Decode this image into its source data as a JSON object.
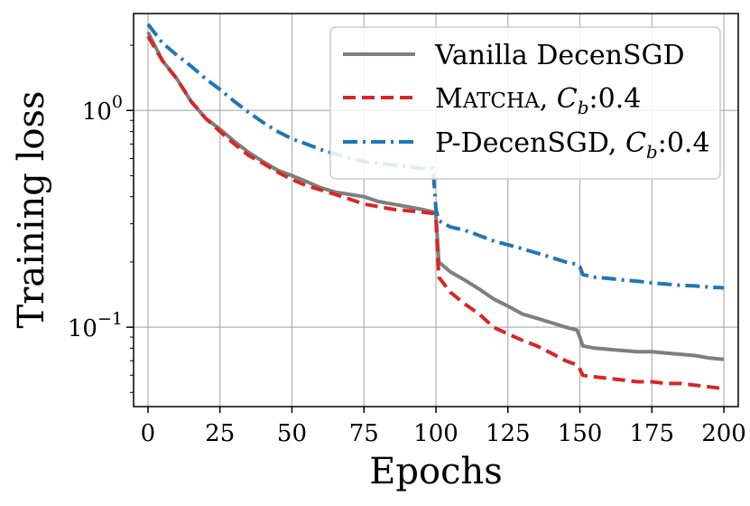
{
  "chart_data": {
    "type": "line",
    "title": "",
    "xlabel": "Epochs",
    "ylabel": "Training loss",
    "xlim": [
      -5,
      205
    ],
    "ylim": [
      0.043,
      2.8
    ],
    "yscale": "log",
    "grid": true,
    "legend_position": "top-right",
    "x_ticks": [
      0,
      25,
      50,
      75,
      100,
      125,
      150,
      175,
      200
    ],
    "x_tick_labels": [
      "0",
      "25",
      "50",
      "75",
      "100",
      "125",
      "150",
      "175",
      "200"
    ],
    "y_ticks": [
      0.1,
      1
    ],
    "y_tick_labels": [
      {
        "base": "10",
        "exp": "−1"
      },
      {
        "base": "10",
        "exp": "0"
      }
    ],
    "series": [
      {
        "name": "Vanilla DecenSGD",
        "color": "#7f7f7f",
        "dash": "solid",
        "x": [
          0,
          5,
          10,
          15,
          20,
          25,
          30,
          35,
          40,
          45,
          50,
          55,
          60,
          65,
          70,
          75,
          80,
          85,
          90,
          95,
          99,
          100,
          101,
          105,
          110,
          115,
          120,
          125,
          130,
          135,
          140,
          145,
          149,
          150,
          151,
          155,
          160,
          165,
          170,
          175,
          180,
          185,
          190,
          195,
          200
        ],
        "values": [
          2.3,
          1.7,
          1.4,
          1.1,
          0.92,
          0.82,
          0.72,
          0.64,
          0.58,
          0.53,
          0.5,
          0.47,
          0.44,
          0.42,
          0.41,
          0.4,
          0.38,
          0.37,
          0.36,
          0.35,
          0.34,
          0.33,
          0.2,
          0.18,
          0.165,
          0.15,
          0.135,
          0.125,
          0.115,
          0.11,
          0.105,
          0.1,
          0.097,
          0.09,
          0.082,
          0.08,
          0.079,
          0.078,
          0.077,
          0.077,
          0.076,
          0.075,
          0.074,
          0.072,
          0.071
        ]
      },
      {
        "name": "MATCHA, Cb:0.4",
        "color": "#d62728",
        "dash": "dashed",
        "x": [
          0,
          5,
          10,
          15,
          20,
          25,
          30,
          35,
          40,
          45,
          50,
          55,
          60,
          65,
          70,
          75,
          80,
          85,
          90,
          95,
          99,
          100,
          101,
          105,
          110,
          115,
          120,
          125,
          130,
          135,
          140,
          145,
          149,
          150,
          151,
          155,
          160,
          165,
          170,
          175,
          180,
          185,
          190,
          195,
          200
        ],
        "values": [
          2.2,
          1.7,
          1.4,
          1.1,
          0.92,
          0.8,
          0.7,
          0.62,
          0.57,
          0.52,
          0.48,
          0.45,
          0.43,
          0.41,
          0.39,
          0.37,
          0.36,
          0.35,
          0.345,
          0.34,
          0.335,
          0.32,
          0.17,
          0.145,
          0.128,
          0.115,
          0.1,
          0.093,
          0.087,
          0.082,
          0.076,
          0.07,
          0.067,
          0.064,
          0.06,
          0.059,
          0.058,
          0.057,
          0.056,
          0.056,
          0.055,
          0.055,
          0.054,
          0.053,
          0.052
        ]
      },
      {
        "name": "P-DecenSGD, Cb:0.4",
        "color": "#1f77b4",
        "dash": "dashdot",
        "x": [
          0,
          5,
          10,
          15,
          20,
          25,
          30,
          35,
          40,
          45,
          50,
          55,
          60,
          65,
          70,
          75,
          80,
          85,
          90,
          95,
          99,
          100,
          101,
          105,
          110,
          115,
          120,
          125,
          130,
          135,
          140,
          145,
          149,
          150,
          151,
          155,
          160,
          165,
          170,
          175,
          180,
          185,
          190,
          195,
          200
        ],
        "values": [
          2.5,
          2.05,
          1.8,
          1.6,
          1.4,
          1.25,
          1.1,
          0.98,
          0.88,
          0.8,
          0.74,
          0.7,
          0.66,
          0.63,
          0.6,
          0.58,
          0.57,
          0.56,
          0.55,
          0.54,
          0.54,
          0.35,
          0.31,
          0.29,
          0.28,
          0.265,
          0.25,
          0.24,
          0.23,
          0.22,
          0.21,
          0.2,
          0.195,
          0.19,
          0.175,
          0.17,
          0.168,
          0.165,
          0.163,
          0.16,
          0.158,
          0.156,
          0.155,
          0.153,
          0.152
        ]
      }
    ]
  },
  "legend": {
    "items": [
      {
        "text": "Vanilla DecenSGD"
      },
      {
        "lead": "M",
        "smallcaps": "ATCHA",
        "rest": ", ",
        "sym": "C",
        "sub": "b",
        "tail": ":0.4"
      },
      {
        "lead": "P-DecenSGD, ",
        "sym": "C",
        "sub": "b",
        "tail": ":0.4"
      }
    ]
  }
}
